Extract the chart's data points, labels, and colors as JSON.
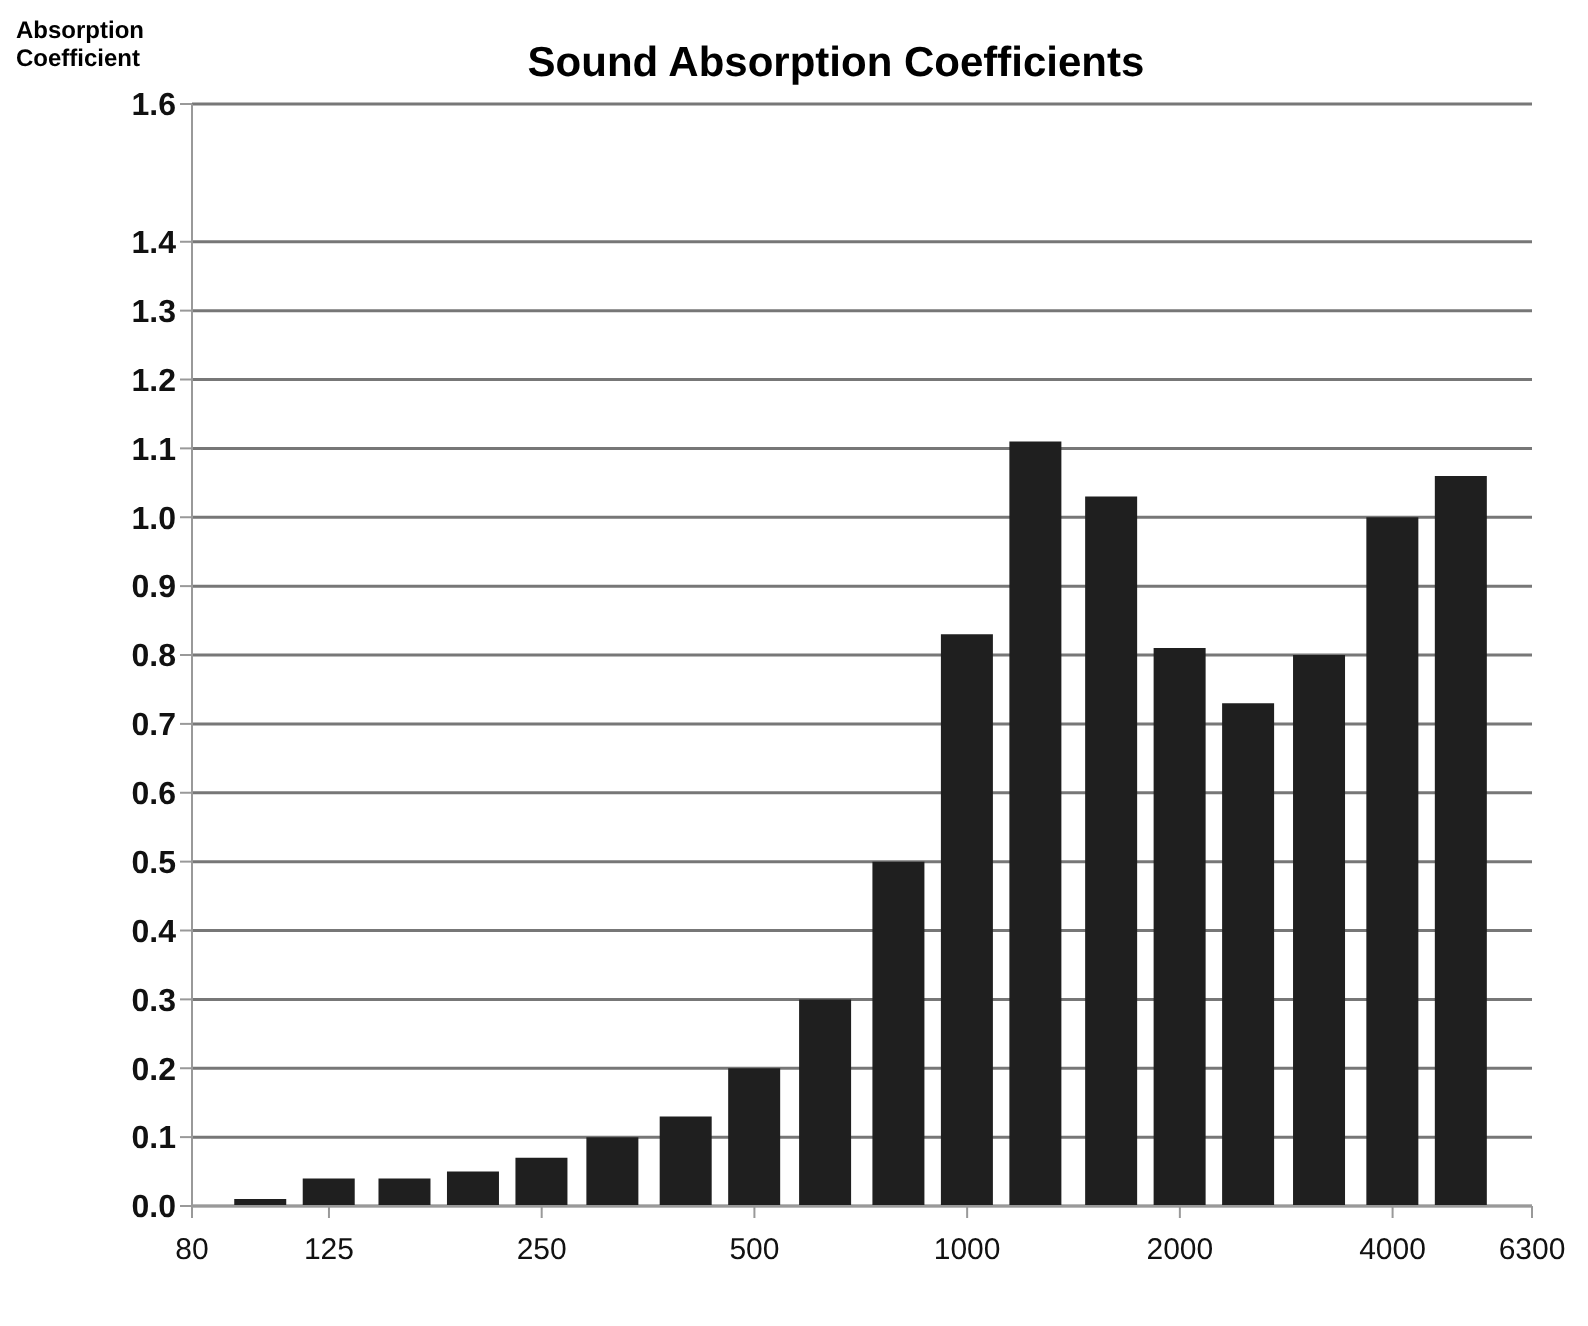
{
  "chart_data": {
    "type": "bar",
    "title": "Sound Absorption Coefficients",
    "ylabel": "Absorption Coefficient",
    "x": [
      100,
      125,
      160,
      200,
      250,
      315,
      400,
      500,
      630,
      800,
      1000,
      1250,
      1600,
      2000,
      2500,
      3150,
      4000,
      5000
    ],
    "values": [
      0.01,
      0.04,
      0.04,
      0.05,
      0.07,
      0.1,
      0.13,
      0.2,
      0.3,
      0.5,
      0.83,
      1.11,
      1.03,
      0.81,
      0.73,
      0.8,
      1.0,
      1.06
    ],
    "color": "#1f1f1f",
    "log": "x",
    "xlim": [
      80,
      6300
    ],
    "xticks": [
      80,
      125,
      250,
      500,
      1000,
      2000,
      4000,
      6300
    ],
    "ylim": [
      0,
      1.6
    ],
    "yticks": [
      {
        "value": 0,
        "label": "0.0"
      },
      0.1,
      0.2,
      0.3,
      0.4,
      0.5,
      0.6,
      0.7,
      0.8,
      0.9,
      {
        "value": 1,
        "label": "1.0"
      },
      1.1,
      1.2,
      1.3,
      1.4,
      1.6
    ],
    "grid": "y"
  }
}
